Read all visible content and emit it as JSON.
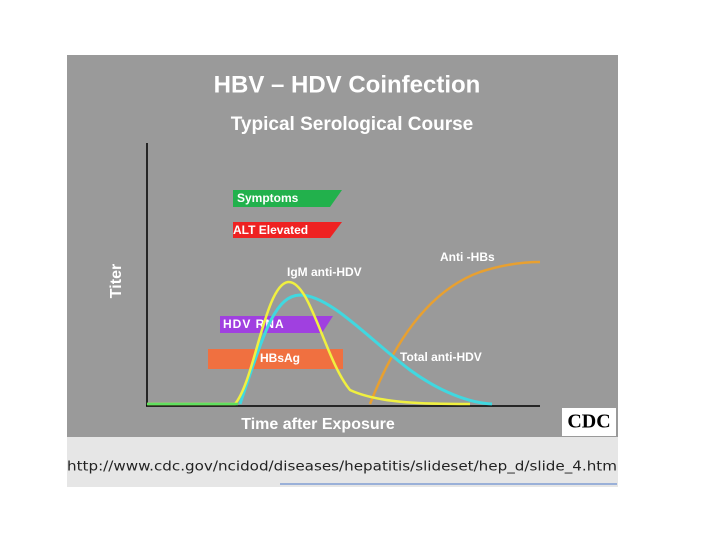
{
  "header": {
    "title": "HBV – HDV Coinfection",
    "subtitle": "Typical Serological Course"
  },
  "axes": {
    "y_label": "Titer",
    "x_label": "Time after Exposure"
  },
  "bars": [
    {
      "label": "Symptoms"
    },
    {
      "label": "ALT Elevated"
    },
    {
      "label": "HDV RNA"
    },
    {
      "label": "HBsAg"
    }
  ],
  "curve_labels": [
    {
      "label": "IgM anti-HDV"
    },
    {
      "label": "Anti -HBs"
    },
    {
      "label": "Total anti-HDV"
    }
  ],
  "logo": "CDC",
  "footer": {
    "url": "http://www.cdc.gov/ncidod/diseases/hepatitis/slideset/hep_d/slide_4.htm"
  }
}
